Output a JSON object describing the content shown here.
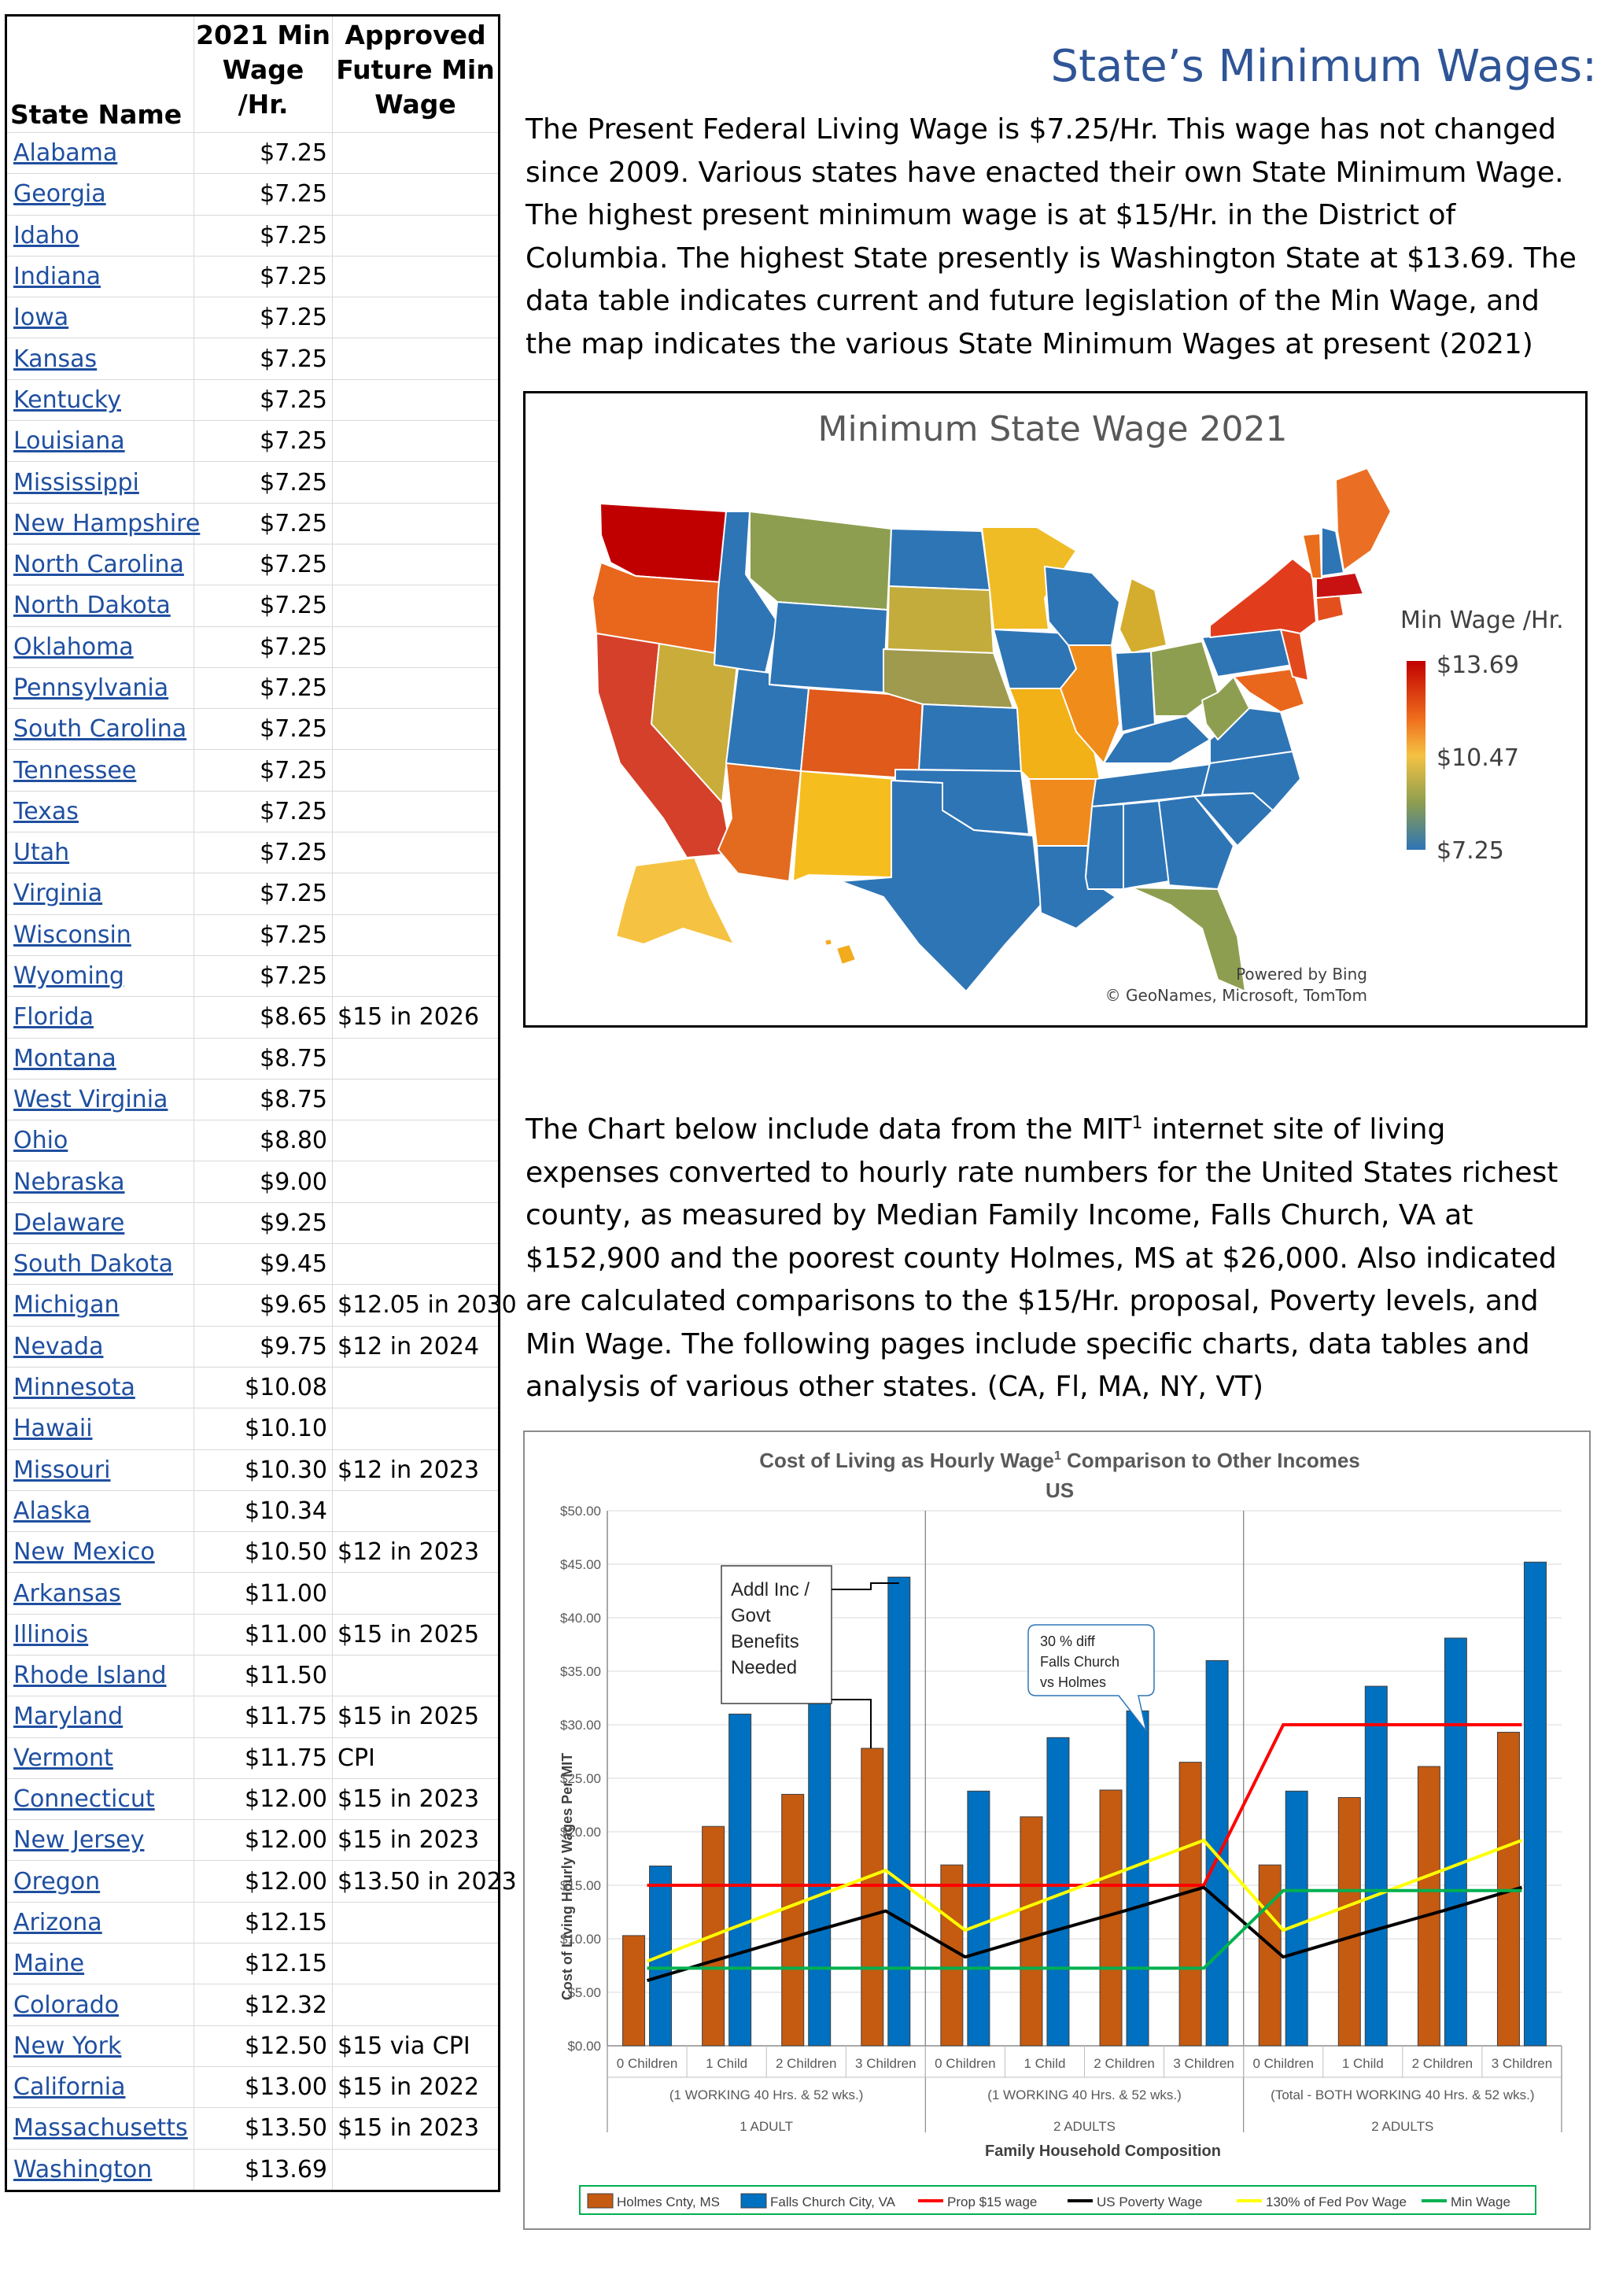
{
  "table": {
    "headers": {
      "state_name": "State Name",
      "min_wage": "2021 Min Wage /Hr.",
      "future_wage": "Approved Future Min Wage"
    },
    "rows": [
      {
        "state": "Alabama",
        "wage": "$7.25",
        "future": ""
      },
      {
        "state": "Georgia",
        "wage": "$7.25",
        "future": ""
      },
      {
        "state": "Idaho",
        "wage": "$7.25",
        "future": ""
      },
      {
        "state": "Indiana",
        "wage": "$7.25",
        "future": ""
      },
      {
        "state": "Iowa",
        "wage": "$7.25",
        "future": ""
      },
      {
        "state": "Kansas",
        "wage": "$7.25",
        "future": ""
      },
      {
        "state": "Kentucky",
        "wage": "$7.25",
        "future": ""
      },
      {
        "state": "Louisiana",
        "wage": "$7.25",
        "future": ""
      },
      {
        "state": "Mississippi",
        "wage": "$7.25",
        "future": ""
      },
      {
        "state": "New Hampshire",
        "wage": "$7.25",
        "future": ""
      },
      {
        "state": "North Carolina",
        "wage": "$7.25",
        "future": ""
      },
      {
        "state": "North Dakota",
        "wage": "$7.25",
        "future": ""
      },
      {
        "state": "Oklahoma",
        "wage": "$7.25",
        "future": ""
      },
      {
        "state": "Pennsylvania",
        "wage": "$7.25",
        "future": ""
      },
      {
        "state": "South Carolina",
        "wage": "$7.25",
        "future": ""
      },
      {
        "state": "Tennessee",
        "wage": "$7.25",
        "future": ""
      },
      {
        "state": "Texas",
        "wage": "$7.25",
        "future": ""
      },
      {
        "state": "Utah",
        "wage": "$7.25",
        "future": ""
      },
      {
        "state": "Virginia",
        "wage": "$7.25",
        "future": ""
      },
      {
        "state": "Wisconsin",
        "wage": "$7.25",
        "future": ""
      },
      {
        "state": "Wyoming",
        "wage": "$7.25",
        "future": ""
      },
      {
        "state": "Florida",
        "wage": "$8.65",
        "future": "$15 in 2026"
      },
      {
        "state": "Montana",
        "wage": "$8.75",
        "future": ""
      },
      {
        "state": "West Virginia",
        "wage": "$8.75",
        "future": ""
      },
      {
        "state": "Ohio",
        "wage": "$8.80",
        "future": ""
      },
      {
        "state": "Nebraska",
        "wage": "$9.00",
        "future": ""
      },
      {
        "state": "Delaware",
        "wage": "$9.25",
        "future": ""
      },
      {
        "state": "South Dakota",
        "wage": "$9.45",
        "future": ""
      },
      {
        "state": "Michigan",
        "wage": "$9.65",
        "future": "$12.05 in 2030"
      },
      {
        "state": "Nevada",
        "wage": "$9.75",
        "future": "$12 in 2024"
      },
      {
        "state": "Minnesota",
        "wage": "$10.08",
        "future": ""
      },
      {
        "state": "Hawaii",
        "wage": "$10.10",
        "future": ""
      },
      {
        "state": "Missouri",
        "wage": "$10.30",
        "future": "$12 in 2023"
      },
      {
        "state": "Alaska",
        "wage": "$10.34",
        "future": ""
      },
      {
        "state": "New Mexico",
        "wage": "$10.50",
        "future": "$12 in 2023"
      },
      {
        "state": "Arkansas",
        "wage": "$11.00",
        "future": ""
      },
      {
        "state": "Illinois",
        "wage": "$11.00",
        "future": "$15 in 2025"
      },
      {
        "state": "Rhode Island",
        "wage": "$11.50",
        "future": ""
      },
      {
        "state": "Maryland",
        "wage": "$11.75",
        "future": "$15 in 2025"
      },
      {
        "state": "Vermont",
        "wage": "$11.75",
        "future": "CPI"
      },
      {
        "state": "Connecticut",
        "wage": "$12.00",
        "future": "$15 in 2023"
      },
      {
        "state": "New Jersey",
        "wage": "$12.00",
        "future": "$15 in 2023"
      },
      {
        "state": "Oregon",
        "wage": "$12.00",
        "future": "$13.50 in 2023"
      },
      {
        "state": "Arizona",
        "wage": "$12.15",
        "future": ""
      },
      {
        "state": "Maine",
        "wage": "$12.15",
        "future": ""
      },
      {
        "state": "Colorado",
        "wage": "$12.32",
        "future": ""
      },
      {
        "state": "New York",
        "wage": "$12.50",
        "future": "$15 via CPI"
      },
      {
        "state": "California",
        "wage": "$13.00",
        "future": "$15 in 2022"
      },
      {
        "state": "Massachusetts",
        "wage": "$13.50",
        "future": "$15 in 2023"
      },
      {
        "state": "Washington",
        "wage": "$13.69",
        "future": ""
      }
    ]
  },
  "page": {
    "title": "State’s Minimum Wages:",
    "para1": "The Present Federal Living Wage is $7.25/Hr. This wage has not changed since 2009. Various states have enacted their own State Minimum Wage. The highest present minimum wage is at $15/Hr. in the District of Columbia. The highest State presently is Washington State at $13.69. The data table indicates current and future legislation of the Min Wage, and the map indicates the various State Minimum Wages at present (2021)",
    "para2_before": "The Chart below include data from the MIT",
    "para2_sup": "1",
    "para2_after": " internet site of living expenses converted to hourly rate numbers for the United States richest county, as measured by Median Family Income, Falls Church, VA at $152,900 and the poorest county Holmes, MS at $26,000.  Also indicated are calculated comparisons to the $15/Hr. proposal, Poverty levels, and Min Wage. The following pages include specific charts, data tables and analysis of various other states. (CA, Fl, MA, NY, VT)"
  },
  "map": {
    "title": "Minimum State Wage 2021",
    "legend_title": "Min Wage /Hr.",
    "legend_max": "$13.69",
    "legend_mid": "$10.47",
    "legend_min": "$7.25",
    "credit1": "Powered by Bing",
    "credit2": "© GeoNames, Microsoft, TomTom",
    "colors": {
      "low": "#2e75b6",
      "mid": "#f5c242",
      "high": "#c00000"
    }
  },
  "chart_data": {
    "type": "bar",
    "title": "Cost of Living as Hourly Wage",
    "title_sup": "1",
    "title_after": " Comparison to Other Incomes",
    "subtitle": "US",
    "ylabel": "Cost of Living Hourly Wages Per MIT",
    "xlabel": "Family Household Composition",
    "ylim": [
      0,
      50
    ],
    "yticks": [
      "$0.00",
      "$5.00",
      "$10.00",
      "$15.00",
      "$20.00",
      "$25.00",
      "$30.00",
      "$35.00",
      "$40.00",
      "$45.00",
      "$50.00"
    ],
    "categories": [
      "0 Children",
      "1 Child",
      "2 Children",
      "3 Children",
      "0 Children",
      "1 Child",
      "2 Children",
      "3 Children",
      "0 Children",
      "1 Child",
      "2 Children",
      "3 Children"
    ],
    "groups": [
      {
        "sub": "(1 WORKING 40 Hrs. & 52 wks.)",
        "label": "1 ADULT"
      },
      {
        "sub": "(1 WORKING 40 Hrs. & 52 wks.)",
        "label": "2 ADULTS"
      },
      {
        "sub": "(Total - BOTH WORKING 40 Hrs. & 52 wks.)",
        "label": "2 ADULTS"
      }
    ],
    "series": [
      {
        "name": "Holmes Cnty, MS",
        "kind": "bar",
        "color": "#c55a11",
        "values": [
          10.3,
          20.5,
          23.5,
          27.8,
          16.9,
          21.4,
          23.9,
          26.5,
          16.9,
          23.2,
          26.1,
          29.3
        ]
      },
      {
        "name": "Falls Church City, VA",
        "kind": "bar",
        "color": "#0070c0",
        "values": [
          16.8,
          31.0,
          35.6,
          43.8,
          23.8,
          28.8,
          31.3,
          36.0,
          23.8,
          33.6,
          38.1,
          45.2
        ]
      },
      {
        "name": "Prop $15 wage",
        "kind": "line",
        "color": "#ff0000",
        "values": [
          15,
          15,
          15,
          15,
          15,
          15,
          15,
          15,
          30,
          30,
          30,
          30
        ]
      },
      {
        "name": "US Poverty Wage",
        "kind": "line",
        "color": "#000000",
        "values": [
          6.1,
          8.3,
          10.5,
          12.6,
          8.3,
          10.5,
          12.6,
          14.8,
          8.3,
          10.5,
          12.6,
          14.8
        ]
      },
      {
        "name": "130% of Fed Pov Wage",
        "kind": "line",
        "color": "#ffff00",
        "values": [
          7.9,
          10.8,
          13.6,
          16.4,
          10.8,
          13.6,
          16.4,
          19.2,
          10.8,
          13.6,
          16.4,
          19.2
        ]
      },
      {
        "name": "Min Wage",
        "kind": "line",
        "color": "#00b050",
        "values": [
          7.25,
          7.25,
          7.25,
          7.25,
          7.25,
          7.25,
          7.25,
          7.25,
          14.5,
          14.5,
          14.5,
          14.5
        ]
      }
    ],
    "annotations": {
      "box1": [
        "Addl Inc /",
        "Govt",
        "Benefits",
        "Needed"
      ],
      "box2": [
        "30 % diff",
        "Falls Church",
        "vs Holmes"
      ]
    }
  }
}
